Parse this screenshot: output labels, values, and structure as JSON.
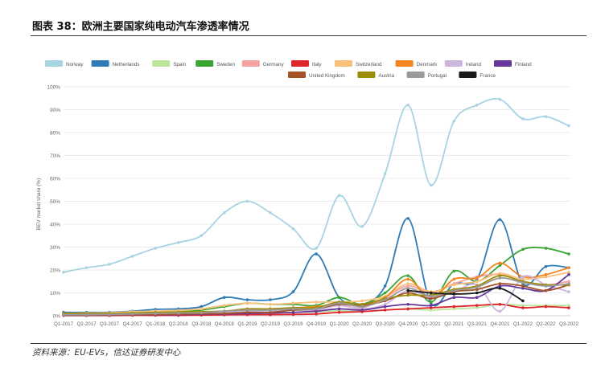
{
  "figure": {
    "title": "图表 38：欧洲主要国家纯电动汽车渗透率情况",
    "source": "资料来源：EU-EVs，信达证券研发中心"
  },
  "chart_data": {
    "type": "line",
    "title": "",
    "xlabel": "",
    "ylabel": "BEV market share (%)",
    "ylim": [
      0,
      100
    ],
    "yticks": [
      "0%",
      "10%",
      "20%",
      "30%",
      "40%",
      "50%",
      "60%",
      "70%",
      "80%",
      "90%",
      "100%"
    ],
    "grid": true,
    "legend_position": "top",
    "categories": [
      "Q1-2017",
      "Q2-2017",
      "Q3-2017",
      "Q4-2017",
      "Q1-2018",
      "Q2-2018",
      "Q3-2018",
      "Q4-2018",
      "Q1-2019",
      "Q2-2019",
      "Q3-2019",
      "Q4-2019",
      "Q1-2020",
      "Q2-2020",
      "Q3-2020",
      "Q4-2020",
      "Q1-2021",
      "Q2-2021",
      "Q3-2021",
      "Q4-2021",
      "Q1-2022",
      "Q2-2022",
      "Q3-2022"
    ],
    "series": [
      {
        "name": "Norway",
        "color": "#a8d3e3",
        "values": [
          19,
          21,
          22.5,
          26,
          29.5,
          32,
          35,
          45,
          50,
          45,
          38,
          29.5,
          52.5,
          39,
          62,
          92,
          57,
          85,
          92,
          94.5,
          86,
          87,
          83
        ]
      },
      {
        "name": "Netherlands",
        "color": "#2f7bb5",
        "values": [
          1.5,
          1.5,
          1.5,
          2,
          2.8,
          3,
          4,
          8,
          7,
          7,
          10.5,
          27,
          8,
          5,
          13,
          42.5,
          5.5,
          14,
          16,
          42,
          14,
          21.5,
          21
        ]
      },
      {
        "name": "Spain",
        "color": "#bde59c",
        "values": [
          0.3,
          0.3,
          0.4,
          0.5,
          0.5,
          0.6,
          0.8,
          0.9,
          1,
          1.2,
          1.5,
          1.7,
          2.2,
          1.8,
          2.5,
          3,
          2.5,
          3,
          3.5,
          5,
          4.5,
          4.5,
          4.5
        ]
      },
      {
        "name": "Sweden",
        "color": "#3aa535",
        "values": [
          1,
          1,
          1.2,
          1.5,
          1.8,
          2,
          2.5,
          4,
          5.5,
          5,
          5,
          4.5,
          8,
          5,
          10,
          17.5,
          6,
          19.5,
          15,
          22,
          29,
          29.5,
          27
        ]
      },
      {
        "name": "Germany",
        "color": "#f4a2a2",
        "values": [
          0.8,
          0.8,
          0.9,
          1,
          1.2,
          1.2,
          1.5,
          2,
          2.3,
          2.3,
          2.5,
          3,
          4.5,
          3.5,
          8,
          13,
          10,
          14,
          17,
          18,
          15,
          13.5,
          15
        ]
      },
      {
        "name": "Italy",
        "color": "#e0242b",
        "values": [
          0.1,
          0.1,
          0.1,
          0.2,
          0.2,
          0.2,
          0.3,
          0.4,
          0.5,
          0.5,
          0.6,
          0.8,
          1.5,
          1.8,
          2.5,
          3,
          3.5,
          4,
          4.5,
          5,
          3.5,
          4,
          3.5
        ]
      },
      {
        "name": "Switzerland",
        "color": "#f8c07a",
        "values": [
          1,
          1.2,
          1.3,
          1.8,
          2,
          2.3,
          3,
          4.5,
          5.5,
          5,
          5.5,
          6,
          6,
          6.5,
          8.5,
          14,
          10.5,
          13.5,
          15,
          18.5,
          16,
          17,
          19
        ]
      },
      {
        "name": "Denmark",
        "color": "#f3841f",
        "values": [
          0.5,
          0.5,
          0.5,
          0.7,
          0.8,
          1,
          1.5,
          2,
          2.5,
          3,
          3.5,
          4,
          5,
          4.5,
          8,
          16,
          7.5,
          16,
          16.5,
          23,
          17,
          18,
          21
        ]
      },
      {
        "name": "Ireland",
        "color": "#cdb6de",
        "values": [
          0.3,
          0.3,
          0.3,
          0.5,
          0.6,
          0.8,
          1,
          1.5,
          2,
          2.2,
          2.5,
          2.5,
          4.5,
          3,
          5,
          11,
          8,
          10.5,
          13.5,
          2,
          17,
          13.5,
          10.5
        ]
      },
      {
        "name": "Finland",
        "color": "#65389a",
        "values": [
          0.2,
          0.2,
          0.3,
          0.4,
          0.5,
          0.5,
          0.7,
          0.8,
          1,
          1.2,
          1.5,
          2,
          3,
          2.5,
          4,
          5,
          4.5,
          8,
          8,
          13,
          12,
          11,
          18
        ]
      },
      {
        "name": "United Kingdom",
        "color": "#a45326",
        "values": [
          0.3,
          0.3,
          0.4,
          0.5,
          0.6,
          0.7,
          0.9,
          1,
          1.5,
          1.5,
          2.5,
          3,
          5,
          4.5,
          6.5,
          10,
          7.5,
          10.5,
          11.5,
          14,
          13,
          11,
          13.5
        ]
      },
      {
        "name": "Austria",
        "color": "#9c8d04",
        "values": [
          1,
          1,
          1,
          1.2,
          1.5,
          1.6,
          1.8,
          2,
          3,
          3,
          3.5,
          3.5,
          6,
          5,
          7.5,
          9,
          9,
          11.5,
          13,
          17.5,
          15,
          13.5,
          13.5
        ]
      },
      {
        "name": "Portugal",
        "color": "#9a9a9a",
        "values": [
          0.5,
          0.5,
          0.6,
          0.8,
          1,
          1.2,
          1.3,
          2,
          2.5,
          2.5,
          3,
          3,
          5.5,
          4,
          7,
          12,
          8.5,
          11,
          12.5,
          16.5,
          14.5,
          13,
          14
        ]
      },
      {
        "name": "France",
        "color": "#1a1a1a",
        "values": [
          null,
          null,
          null,
          null,
          null,
          null,
          null,
          null,
          null,
          null,
          null,
          null,
          null,
          null,
          null,
          11,
          10,
          9.5,
          10,
          12,
          6.5,
          null,
          null
        ]
      }
    ]
  }
}
